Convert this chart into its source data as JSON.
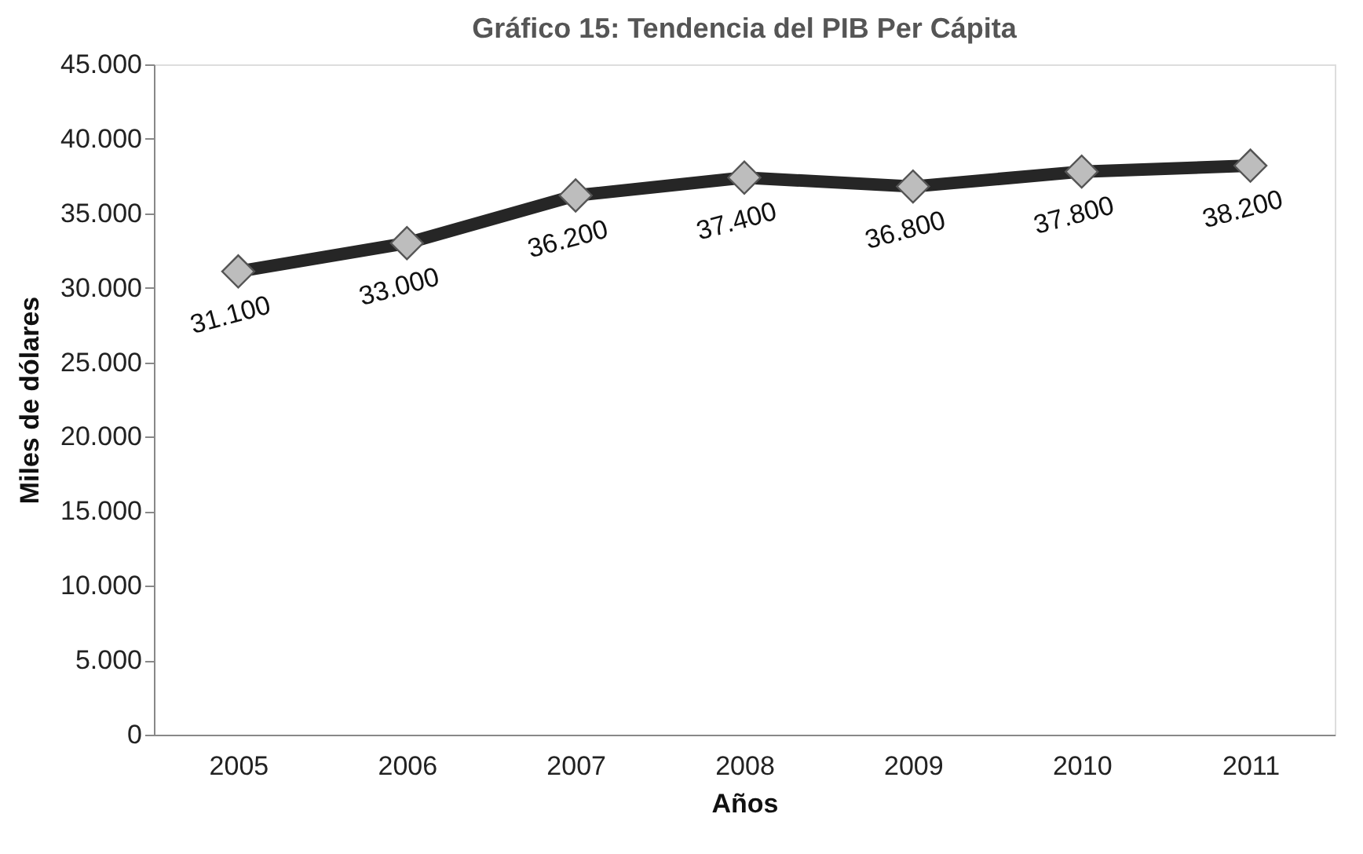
{
  "chart_data": {
    "type": "line",
    "title": "Gráfico 15: Tendencia del PIB Per Cápita",
    "xlabel": "Años",
    "ylabel": "Miles de dólares",
    "categories": [
      "2005",
      "2006",
      "2007",
      "2008",
      "2009",
      "2010",
      "2011"
    ],
    "series": [
      {
        "color": "#262626",
        "values": [
          31100,
          33000,
          36200,
          37400,
          36800,
          37800,
          38200
        ],
        "value_labels": [
          "31.100",
          "33.000",
          "36.200",
          "37.400",
          "36.800",
          "37.800",
          "38.200"
        ]
      }
    ],
    "ylim": [
      0,
      45000
    ],
    "yticks": [
      0,
      {
        "value": 5000,
        "label": "5.000"
      },
      {
        "value": 10000,
        "label": "10.000"
      },
      {
        "value": 15000,
        "label": "15.000"
      },
      {
        "value": 20000,
        "label": "20.000"
      },
      {
        "value": 25000,
        "label": "25.000"
      },
      {
        "value": 30000,
        "label": "30.000"
      },
      {
        "value": 35000,
        "label": "35.000"
      },
      {
        "value": 40000,
        "label": "40.000"
      },
      {
        "value": 45000,
        "label": "45.000"
      }
    ],
    "marker": "diamond",
    "line_style": "solid",
    "grid": false
  }
}
